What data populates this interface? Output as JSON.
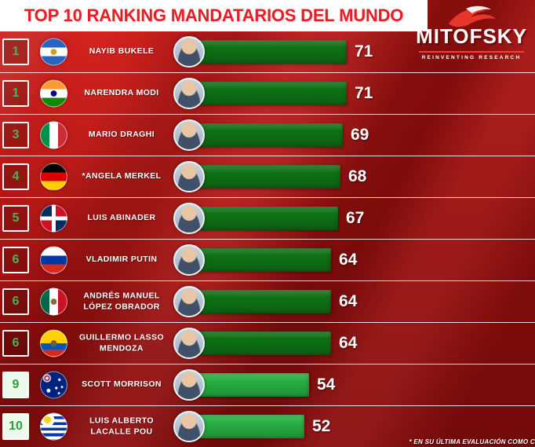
{
  "page": {
    "title": "TOP 10 RANKING MANDATARIOS DEL MUNDO",
    "footnote": "* EN SU ÚLTIMA EVALUACIÓN COMO C",
    "logo": {
      "name": "MITOFSKY",
      "tagline": "REINVENTING RESEARCH"
    },
    "colors": {
      "background": "#a01010",
      "title_text": "#ea1c24",
      "band": "#ffffff",
      "bar_dark": "#0e7215",
      "bar_bright": "#28b043",
      "rank_green": "#4db352",
      "score_text": "#ffffff"
    }
  },
  "chart_data": {
    "type": "bar",
    "orientation": "horizontal",
    "title": "TOP 10 RANKING MANDATARIOS DEL MUNDO",
    "value_range": [
      0,
      100
    ],
    "rows": [
      {
        "rank": "1",
        "name": "NAYIB BUKELE",
        "country": "El Salvador",
        "value": 71,
        "bar_style": "dark",
        "rank_box": "dark",
        "flag": {
          "type": "h",
          "colors": [
            "#2b63c1",
            "#ffffff",
            "#2b63c1"
          ],
          "emblem": "#c8a415"
        }
      },
      {
        "rank": "1",
        "name": "NARENDRA MODI",
        "country": "India",
        "value": 71,
        "bar_style": "dark",
        "rank_box": "dark",
        "flag": {
          "type": "h",
          "colors": [
            "#ff9933",
            "#ffffff",
            "#128807"
          ],
          "emblem": "#000080"
        }
      },
      {
        "rank": "3",
        "name": "MARIO DRAGHI",
        "country": "Italia",
        "value": 69,
        "bar_style": "dark",
        "rank_box": "dark",
        "flag": {
          "type": "v",
          "colors": [
            "#009246",
            "#ffffff",
            "#ce2b37"
          ]
        }
      },
      {
        "rank": "4",
        "name": "*ANGELA MERKEL",
        "country": "Alemania",
        "value": 68,
        "bar_style": "dark",
        "rank_box": "dark",
        "flag": {
          "type": "h",
          "colors": [
            "#000000",
            "#dd0000",
            "#ffce00"
          ]
        }
      },
      {
        "rank": "5",
        "name": "LUIS ABINADER",
        "country": "República Dominicana",
        "value": 67,
        "bar_style": "dark",
        "rank_box": "dark",
        "flag": {
          "type": "dr",
          "colors": [
            "#002d62",
            "#ce1126",
            "#ffffff"
          ]
        }
      },
      {
        "rank": "6",
        "name": "VLADIMIR PUTIN",
        "country": "Rusia",
        "value": 64,
        "bar_style": "dark",
        "rank_box": "dark",
        "flag": {
          "type": "h",
          "colors": [
            "#ffffff",
            "#0039a6",
            "#d52b1e"
          ]
        }
      },
      {
        "rank": "6",
        "name": "ANDRÉS MANUEL LÓPEZ OBRADOR",
        "country": "México",
        "value": 64,
        "bar_style": "dark",
        "rank_box": "dark",
        "flag": {
          "type": "v",
          "colors": [
            "#006847",
            "#ffffff",
            "#ce1126"
          ],
          "emblem": "#8a6d3b"
        }
      },
      {
        "rank": "6",
        "name": "GUILLERMO LASSO MENDOZA",
        "country": "Ecuador",
        "value": 64,
        "bar_style": "dark",
        "rank_box": "dark",
        "flag": {
          "type": "h",
          "colors": [
            "#ffd100",
            "#0057b7",
            "#d52b1e"
          ],
          "fractions": [
            0.5,
            0.25,
            0.25
          ],
          "emblem": "#7a5c2e"
        }
      },
      {
        "rank": "9",
        "name": "SCOTT MORRISON",
        "country": "Australia",
        "value": 54,
        "bar_style": "bright",
        "rank_box": "light",
        "flag": {
          "type": "au",
          "colors": [
            "#00247d",
            "#ffffff",
            "#c8102e"
          ]
        }
      },
      {
        "rank": "10",
        "name": "LUIS ALBERTO LACALLE POU",
        "country": "Uruguay",
        "value": 52,
        "bar_style": "bright",
        "rank_box": "light",
        "flag": {
          "type": "uy",
          "colors": [
            "#ffffff",
            "#0038a8",
            "#fcd116"
          ]
        }
      }
    ]
  }
}
